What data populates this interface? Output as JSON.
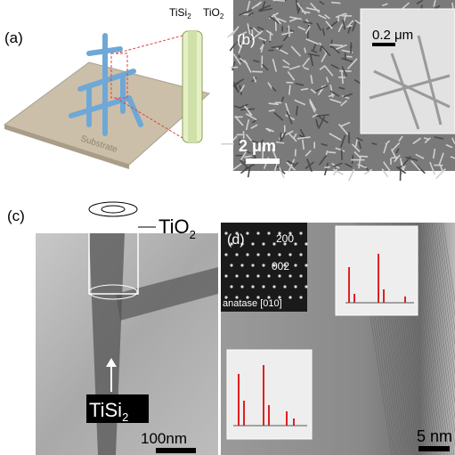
{
  "panel_a": {
    "label": "(a)",
    "tisi": {
      "text": "TiSi",
      "sub": "2"
    },
    "tio": {
      "text": "TiO",
      "sub": "2"
    },
    "substrate": "Substrate"
  },
  "panel_b": {
    "label": "(b)",
    "inset_scale": "0.2 μm",
    "scale": "2 μm"
  },
  "panel_c": {
    "label": "(c)",
    "tio": {
      "text": "TiO",
      "sub": "2"
    },
    "tisi": {
      "text": "TiSi",
      "sub": "2"
    },
    "scale": "100nm"
  },
  "panel_d": {
    "label": "(d)",
    "spot_1": "200",
    "spot_2": "002",
    "zone": "anatase [010]",
    "scale": "5 nm"
  }
}
